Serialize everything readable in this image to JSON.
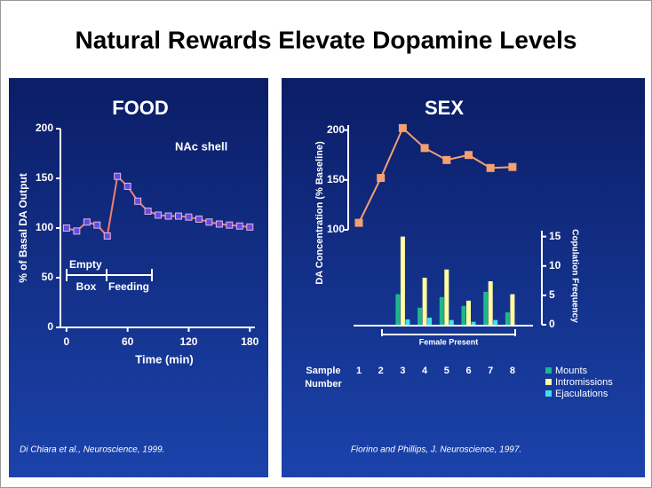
{
  "title": "Natural Rewards Elevate Dopamine Levels",
  "chart_data": [
    {
      "type": "line",
      "title": "FOOD",
      "annotations": [
        "NAc shell",
        "Empty",
        "Box",
        "Feeding"
      ],
      "x_label": "Time (min)",
      "y_label": "% of Basal DA Output",
      "x": [
        0,
        10,
        20,
        30,
        40,
        50,
        60,
        70,
        80,
        90,
        100,
        110,
        120,
        130,
        140,
        150,
        160,
        170,
        180
      ],
      "values": [
        100,
        97,
        106,
        103,
        92,
        152,
        142,
        127,
        117,
        113,
        112,
        112,
        111,
        109,
        106,
        104,
        103,
        102,
        101
      ],
      "color": "#f08070",
      "marker_color": "#5a4fe0",
      "xlim": [
        -6,
        185
      ],
      "xticks": [
        0,
        60,
        120,
        180
      ],
      "ylim": [
        0,
        200
      ],
      "yticks": [
        0,
        50,
        100,
        150,
        200
      ],
      "source": "Di Chiara et al., Neuroscience, 1999."
    },
    {
      "type": "combo",
      "title": "SEX",
      "annotation": "Female Present",
      "x_label": "Sample Number",
      "y_label": "DA Concentration (% Baseline)",
      "y2_label": "Copulation Frequency",
      "categories": [
        "1",
        "2",
        "3",
        "4",
        "5",
        "6",
        "7",
        "8"
      ],
      "ylim": [
        100,
        205
      ],
      "yticks": [
        100,
        150,
        200
      ],
      "y2lim": [
        0,
        16
      ],
      "y2ticks": [
        0,
        5,
        10,
        15
      ],
      "series": [
        {
          "type": "line",
          "color": "#f4a070",
          "values": [
            107,
            152,
            202,
            182,
            170,
            175,
            162,
            163
          ]
        },
        {
          "type": "bar",
          "name": "Mounts",
          "color": "#1db88a",
          "axis": "y2",
          "values": [
            0,
            0,
            5.2,
            2.9,
            4.7,
            3.2,
            5.6,
            2.1
          ]
        },
        {
          "type": "bar",
          "name": "Intromissions",
          "color": "#ffffa0",
          "axis": "y2",
          "values": [
            0,
            0,
            15,
            8,
            9.4,
            4.1,
            7.4,
            5.2
          ]
        },
        {
          "type": "bar",
          "name": "Ejaculations",
          "color": "#40e0f0",
          "axis": "y2",
          "values": [
            0,
            0,
            0.9,
            1.2,
            0.8,
            0.5,
            0.8,
            0
          ]
        }
      ],
      "source": "Fiorino and Phillips, J. Neuroscience, 1997."
    }
  ]
}
